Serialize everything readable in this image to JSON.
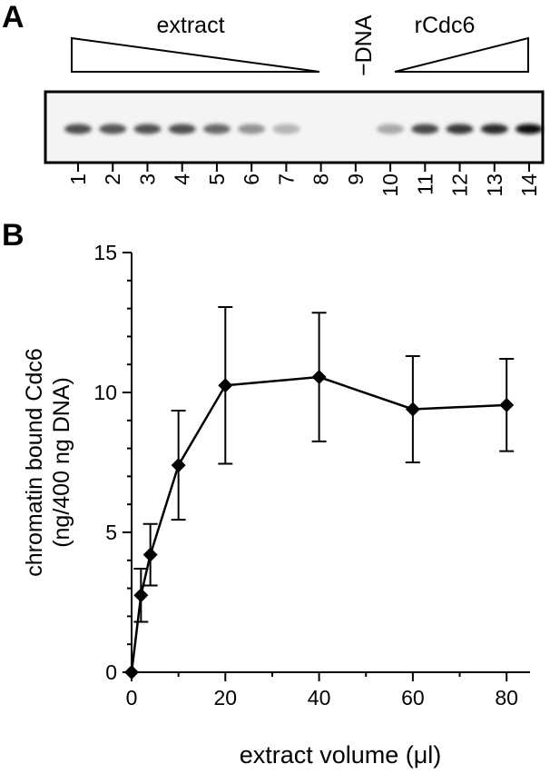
{
  "panel_a": {
    "label": "A",
    "extract_label": "extract",
    "dna_label": "−DNA",
    "rcdc6_label": "rCdc6",
    "lanes": [
      "1",
      "2",
      "3",
      "4",
      "5",
      "6",
      "7",
      "8",
      "9",
      "10",
      "11",
      "12",
      "13",
      "14"
    ],
    "band_intensity": [
      0.72,
      0.68,
      0.7,
      0.72,
      0.6,
      0.4,
      0.25,
      0.0,
      0.0,
      0.3,
      0.75,
      0.82,
      0.88,
      1.0
    ]
  },
  "panel_b": {
    "label": "B"
  },
  "chart_data": {
    "type": "line",
    "title": "",
    "xlabel": "extract volume (μl)",
    "ylabel_line1": "chromatin bound Cdc6",
    "ylabel_line2": "(ng/400 ng DNA)",
    "xlim": [
      0,
      85
    ],
    "ylim": [
      0,
      15
    ],
    "xticks": [
      0,
      20,
      40,
      60,
      80
    ],
    "yticks": [
      0,
      5,
      10,
      15
    ],
    "grid": false,
    "marker": "diamond",
    "color": "#000000",
    "series": [
      {
        "x": [
          0,
          2,
          4,
          10,
          20,
          40,
          60,
          80
        ],
        "y": [
          0,
          2.75,
          4.2,
          7.4,
          10.25,
          10.55,
          9.4,
          9.55
        ],
        "err": [
          0,
          0.95,
          1.1,
          1.95,
          2.8,
          2.3,
          1.9,
          1.65
        ]
      }
    ]
  }
}
